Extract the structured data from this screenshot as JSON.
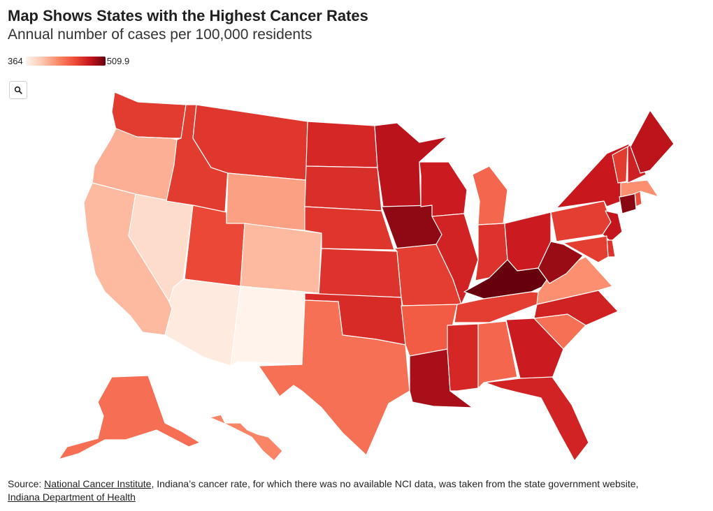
{
  "header": {
    "title": "Map Shows States with the Highest Cancer Rates",
    "subtitle": "Annual number of cases per 100,000 residents"
  },
  "legend": {
    "min_label": "364",
    "max_label": "509.9"
  },
  "controls": {
    "zoom_icon": "magnifier-icon"
  },
  "colors": {
    "scale": [
      "#fff3ec",
      "#fdc9b0",
      "#fb8a6a",
      "#f04f3a",
      "#c8161d",
      "#67000d"
    ],
    "border": "#ffffff"
  },
  "chart_data": {
    "type": "choropleth",
    "title": "Map Shows States with the Highest Cancer Rates",
    "subtitle": "Annual number of cases per 100,000 residents",
    "value_range": [
      364,
      509.9
    ],
    "values": [
      {
        "state": "WA",
        "value": 462
      },
      {
        "state": "OR",
        "value": 405
      },
      {
        "state": "CA",
        "value": 400
      },
      {
        "state": "NV",
        "value": 380
      },
      {
        "state": "ID",
        "value": 462
      },
      {
        "state": "MT",
        "value": 464
      },
      {
        "state": "WY",
        "value": 412
      },
      {
        "state": "UT",
        "value": 455
      },
      {
        "state": "AZ",
        "value": 370
      },
      {
        "state": "CO",
        "value": 400
      },
      {
        "state": "NM",
        "value": 364
      },
      {
        "state": "ND",
        "value": 472
      },
      {
        "state": "SD",
        "value": 468
      },
      {
        "state": "NE",
        "value": 465
      },
      {
        "state": "KS",
        "value": 466
      },
      {
        "state": "OK",
        "value": 470
      },
      {
        "state": "TX",
        "value": 435
      },
      {
        "state": "MN",
        "value": 485
      },
      {
        "state": "IA",
        "value": 498
      },
      {
        "state": "MO",
        "value": 460
      },
      {
        "state": "AR",
        "value": 445
      },
      {
        "state": "LA",
        "value": 490
      },
      {
        "state": "WI",
        "value": 478
      },
      {
        "state": "IL",
        "value": 474
      },
      {
        "state": "MI",
        "value": 440
      },
      {
        "state": "IN",
        "value": 466
      },
      {
        "state": "OH",
        "value": 478
      },
      {
        "state": "KY",
        "value": 509.9
      },
      {
        "state": "TN",
        "value": 460
      },
      {
        "state": "MS",
        "value": 472
      },
      {
        "state": "AL",
        "value": 440
      },
      {
        "state": "GA",
        "value": 478
      },
      {
        "state": "FL",
        "value": 474
      },
      {
        "state": "SC",
        "value": 435
      },
      {
        "state": "NC",
        "value": 475
      },
      {
        "state": "VA",
        "value": 420
      },
      {
        "state": "WV",
        "value": 495
      },
      {
        "state": "PA",
        "value": 460
      },
      {
        "state": "NY",
        "value": 480
      },
      {
        "state": "NJ",
        "value": 482
      },
      {
        "state": "DE",
        "value": 466
      },
      {
        "state": "MD",
        "value": 460
      },
      {
        "state": "CT",
        "value": 500
      },
      {
        "state": "RI",
        "value": 452
      },
      {
        "state": "MA",
        "value": 420
      },
      {
        "state": "VT",
        "value": 462
      },
      {
        "state": "NH",
        "value": 476
      },
      {
        "state": "ME",
        "value": 484
      },
      {
        "state": "AK",
        "value": 436
      },
      {
        "state": "HI",
        "value": 425
      }
    ]
  },
  "source": {
    "prefix": "Source: ",
    "link1": "National Cancer Institute",
    "middle": ", Indiana’s cancer rate, for which there was no available NCI data, was taken from the state government website, ",
    "link2": "Indiana Department of Health"
  }
}
